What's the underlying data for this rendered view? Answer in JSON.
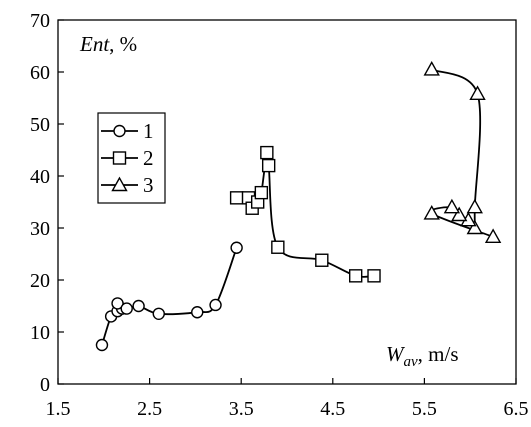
{
  "chart_data": {
    "type": "line",
    "x_axis": {
      "range": [
        1.5,
        6.5
      ],
      "ticks": [
        1.5,
        2.5,
        3.5,
        4.5,
        5.5,
        6.5
      ],
      "tick_labels": [
        "1.5",
        "2.5",
        "3.5",
        "4.5",
        "5.5",
        "6.5"
      ],
      "label_main": "W",
      "label_sub": "av",
      "label_unit": ", m/s"
    },
    "y_axis": {
      "range": [
        0,
        70
      ],
      "ticks": [
        0,
        10,
        20,
        30,
        40,
        50,
        60,
        70
      ],
      "tick_labels": [
        "0",
        "10",
        "20",
        "30",
        "40",
        "50",
        "60",
        "70"
      ],
      "label_main": "Ent",
      "label_unit": ", %"
    },
    "grid": false,
    "legend": {
      "placement": "left",
      "labels": [
        "1",
        "2",
        "3"
      ]
    },
    "series": [
      {
        "name": "1",
        "marker": "circle",
        "points": [
          [
            1.98,
            7.5
          ],
          [
            2.08,
            13.0
          ],
          [
            2.15,
            14.0
          ],
          [
            2.2,
            14.5
          ],
          [
            2.15,
            15.5
          ],
          [
            2.25,
            14.5
          ],
          [
            2.38,
            15.0
          ],
          [
            2.6,
            13.5
          ],
          [
            3.02,
            13.8
          ],
          [
            3.22,
            15.2
          ],
          [
            3.45,
            26.2
          ]
        ]
      },
      {
        "name": "2",
        "marker": "square",
        "points": [
          [
            3.45,
            35.8
          ],
          [
            3.58,
            35.8
          ],
          [
            3.62,
            33.8
          ],
          [
            3.68,
            35.0
          ],
          [
            3.72,
            36.8
          ],
          [
            3.78,
            44.5
          ],
          [
            3.8,
            42.0
          ],
          [
            3.9,
            26.3
          ],
          [
            4.38,
            23.8
          ],
          [
            4.75,
            20.8
          ],
          [
            4.95,
            20.8
          ]
        ]
      },
      {
        "name": "3",
        "marker": "triangle",
        "points": [
          [
            5.58,
            60.5
          ],
          [
            6.08,
            55.8
          ],
          [
            6.05,
            34.0
          ],
          [
            6.05,
            30.0
          ],
          [
            5.98,
            31.5
          ],
          [
            5.88,
            32.5
          ],
          [
            5.8,
            34.0
          ],
          [
            5.58,
            32.8
          ],
          [
            6.25,
            28.3
          ]
        ]
      }
    ]
  }
}
